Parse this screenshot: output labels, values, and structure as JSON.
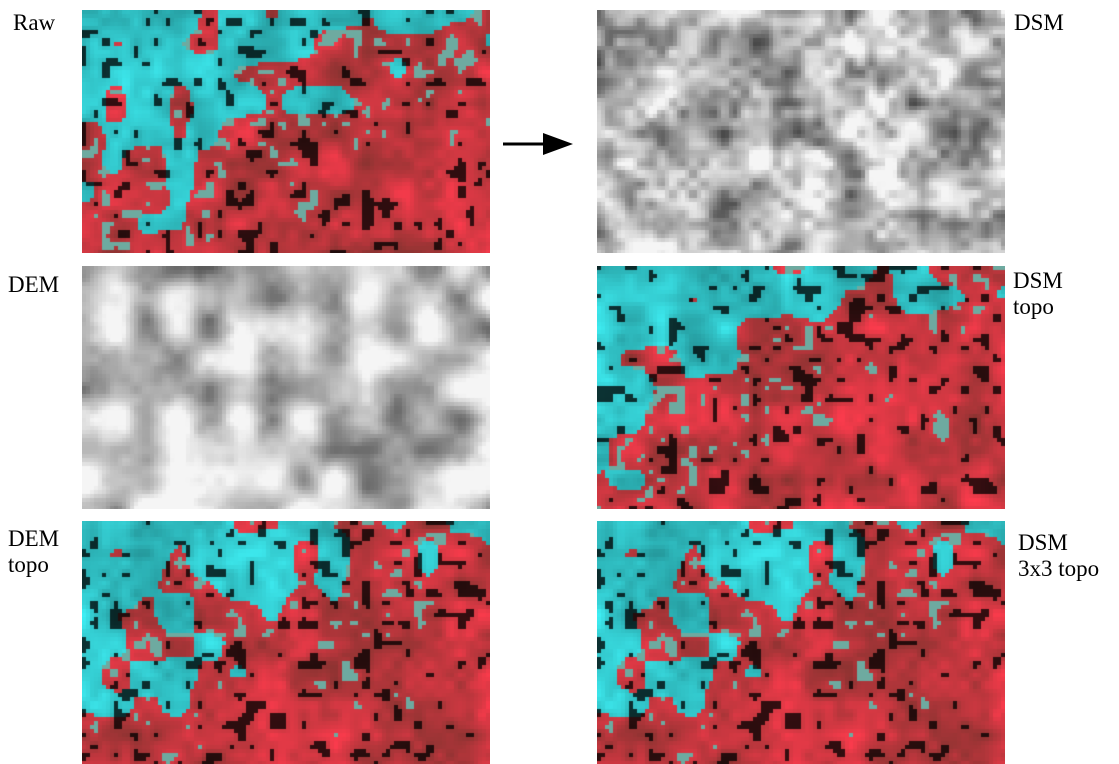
{
  "panels": {
    "raw": {
      "label": "Raw",
      "kind": "false-color"
    },
    "dsm": {
      "label": "DSM",
      "kind": "grayscale"
    },
    "dem": {
      "label": "DEM",
      "kind": "grayscale"
    },
    "dsm_topo": {
      "label": "DSM\ntopo",
      "kind": "false-color"
    },
    "dem_topo": {
      "label": "DEM\ntopo",
      "kind": "false-color"
    },
    "dsm_3x3_topo": {
      "label": "DSM\n3x3 topo",
      "kind": "false-color"
    }
  },
  "colors": {
    "cyan": "#5fd8d8",
    "red": "#e02828",
    "dark": "#1a1a1a",
    "light": "#f0f0f0"
  },
  "arrow_icon": "right-arrow-icon"
}
